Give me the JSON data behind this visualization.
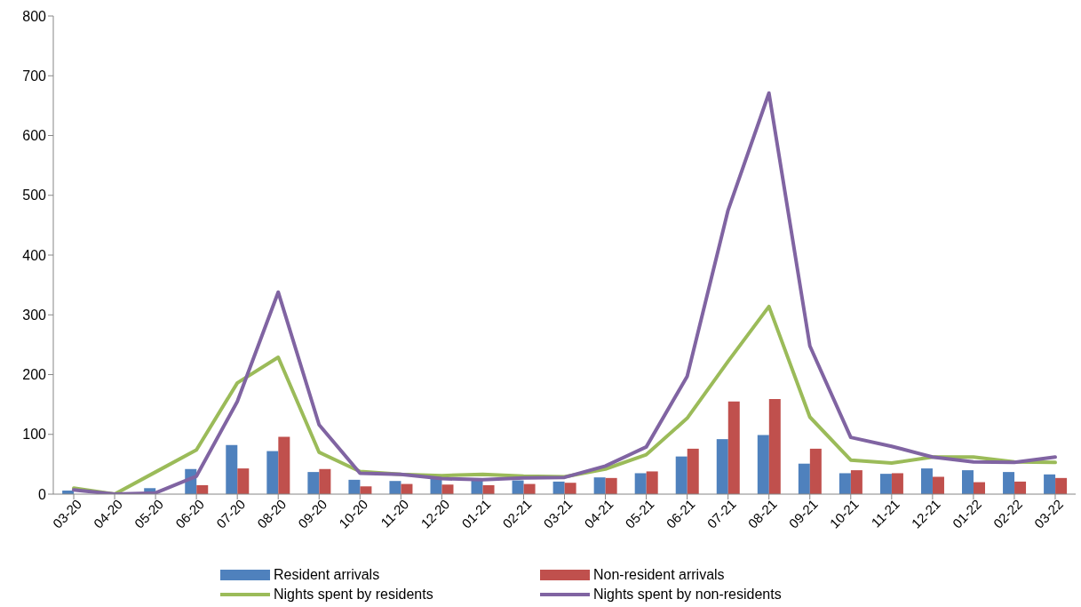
{
  "chart_data": {
    "type": "bar",
    "categories": [
      "03-20",
      "04-20",
      "05-20",
      "06-20",
      "07-20",
      "08-20",
      "09-20",
      "10-20",
      "11-20",
      "12-20",
      "01-21",
      "02-21",
      "03-21",
      "04-21",
      "05-21",
      "06-21",
      "07-21",
      "08-21",
      "09-21",
      "10-21",
      "11-21",
      "12-21",
      "01-22",
      "02-22",
      "03-22"
    ],
    "series": [
      {
        "name": "Resident arrivals",
        "color": "#4f81bd",
        "values": [
          6,
          0,
          10,
          42,
          82,
          72,
          37,
          24,
          22,
          27,
          25,
          23,
          21,
          28,
          35,
          63,
          92,
          99,
          51,
          35,
          34,
          43,
          40,
          37,
          33
        ]
      },
      {
        "name": "Non-resident arrivals",
        "color": "#c0504d",
        "values": [
          null,
          0,
          null,
          15,
          43,
          96,
          42,
          13,
          17,
          16,
          15,
          17,
          19,
          27,
          38,
          76,
          155,
          159,
          76,
          40,
          35,
          29,
          20,
          21,
          27
        ]
      },
      {
        "name": "Nights spent by residents",
        "type": "line",
        "color": "#9bbb59",
        "values": [
          10,
          0,
          37,
          74,
          186,
          229,
          70,
          38,
          33,
          31,
          33,
          30,
          29,
          42,
          66,
          127,
          222,
          314,
          129,
          57,
          52,
          62,
          62,
          54,
          53
        ]
      },
      {
        "name": "Nights spent by non-residents",
        "type": "line",
        "color": "#8064a2",
        "values": [
          7,
          0,
          2,
          30,
          155,
          338,
          116,
          35,
          33,
          26,
          24,
          27,
          28,
          47,
          79,
          197,
          475,
          671,
          248,
          95,
          80,
          62,
          54,
          53,
          62
        ]
      }
    ],
    "ylim": [
      0,
      800
    ],
    "yticks": [
      0,
      100,
      200,
      300,
      400,
      500,
      600,
      700,
      800
    ],
    "grid": false,
    "legend": "bottom",
    "marker": "none",
    "line_style": "solid"
  }
}
